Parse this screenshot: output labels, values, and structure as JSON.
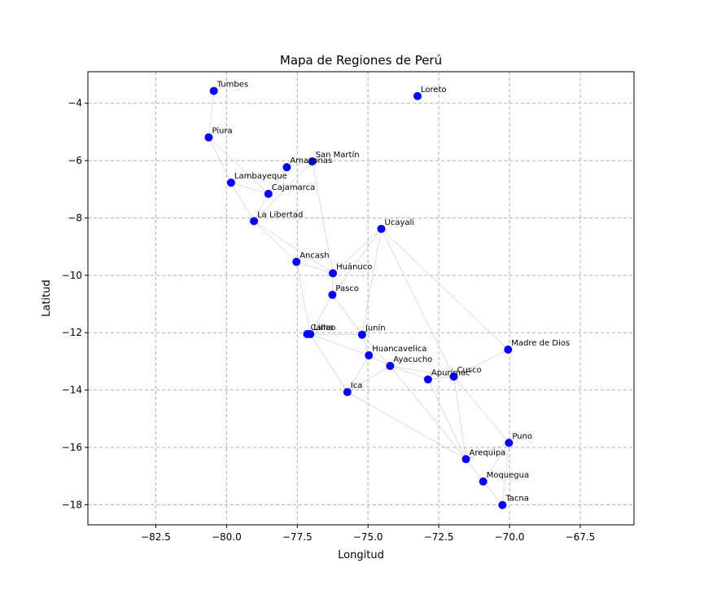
{
  "chart_data": {
    "type": "scatter",
    "title": "Mapa de Regiones de Perú",
    "xlabel": "Longitud",
    "ylabel": "Latitud",
    "xlim": [
      -84.9,
      -65.6
    ],
    "ylim": [
      -18.7,
      -2.9
    ],
    "xticks": [
      -82.5,
      -80.0,
      -77.5,
      -75.0,
      -72.5,
      -70.0,
      -67.5
    ],
    "xtick_labels": [
      "−82.5",
      "−80.0",
      "−77.5",
      "−75.0",
      "−72.5",
      "−70.0",
      "−67.5"
    ],
    "yticks": [
      -4,
      -6,
      -8,
      -10,
      -12,
      -14,
      -16,
      -18
    ],
    "ytick_labels": [
      "−4",
      "−6",
      "−8",
      "−10",
      "−12",
      "−14",
      "−16",
      "−18"
    ],
    "grid": true,
    "marker_color": "#0000ff",
    "edge_color": "#c8c8c8",
    "points": [
      {
        "name": "Tumbes",
        "x": -80.45,
        "y": -3.57
      },
      {
        "name": "Loreto",
        "x": -73.25,
        "y": -3.75
      },
      {
        "name": "Piura",
        "x": -80.63,
        "y": -5.19
      },
      {
        "name": "San Martín",
        "x": -76.97,
        "y": -6.03
      },
      {
        "name": "Amazonas",
        "x": -77.87,
        "y": -6.23
      },
      {
        "name": "Lambayeque",
        "x": -79.84,
        "y": -6.77
      },
      {
        "name": "Cajamarca",
        "x": -78.52,
        "y": -7.16
      },
      {
        "name": "La Libertad",
        "x": -79.03,
        "y": -8.11
      },
      {
        "name": "Ucayali",
        "x": -74.53,
        "y": -8.38
      },
      {
        "name": "Ancash",
        "x": -77.53,
        "y": -9.53
      },
      {
        "name": "Huánuco",
        "x": -76.24,
        "y": -9.93
      },
      {
        "name": "Pasco",
        "x": -76.26,
        "y": -10.68
      },
      {
        "name": "Lima",
        "x": -77.04,
        "y": -12.05
      },
      {
        "name": "Callao",
        "x": -77.15,
        "y": -12.05
      },
      {
        "name": "Junín",
        "x": -75.21,
        "y": -12.07
      },
      {
        "name": "Madre de Dios",
        "x": -70.05,
        "y": -12.59
      },
      {
        "name": "Huancavelica",
        "x": -74.97,
        "y": -12.79
      },
      {
        "name": "Ayacucho",
        "x": -74.22,
        "y": -13.16
      },
      {
        "name": "Cusco",
        "x": -71.97,
        "y": -13.53
      },
      {
        "name": "Apurímac",
        "x": -72.88,
        "y": -13.63
      },
      {
        "name": "Ica",
        "x": -75.73,
        "y": -14.07
      },
      {
        "name": "Puno",
        "x": -70.02,
        "y": -15.84
      },
      {
        "name": "Arequipa",
        "x": -71.54,
        "y": -16.41
      },
      {
        "name": "Moquegua",
        "x": -70.93,
        "y": -17.19
      },
      {
        "name": "Tacna",
        "x": -70.25,
        "y": -18.01
      }
    ],
    "edges": [
      [
        "Tumbes",
        "Piura"
      ],
      [
        "Piura",
        "Lambayeque"
      ],
      [
        "Piura",
        "Cajamarca"
      ],
      [
        "Cajamarca",
        "Amazonas"
      ],
      [
        "Cajamarca",
        "Lambayeque"
      ],
      [
        "Cajamarca",
        "La Libertad"
      ],
      [
        "Amazonas",
        "San Martín"
      ],
      [
        "Lambayeque",
        "La Libertad"
      ],
      [
        "San Martín",
        "La Libertad"
      ],
      [
        "San Martín",
        "Huánuco"
      ],
      [
        "La Libertad",
        "Ancash"
      ],
      [
        "La Libertad",
        "Huánuco"
      ],
      [
        "Ancash",
        "Huánuco"
      ],
      [
        "Ancash",
        "Lima"
      ],
      [
        "Huánuco",
        "Ucayali"
      ],
      [
        "Huánuco",
        "Pasco"
      ],
      [
        "Ucayali",
        "Pasco"
      ],
      [
        "Ucayali",
        "Junín"
      ],
      [
        "Ucayali",
        "Cusco"
      ],
      [
        "Ucayali",
        "Madre de Dios"
      ],
      [
        "Pasco",
        "Lima"
      ],
      [
        "Pasco",
        "Junín"
      ],
      [
        "Lima",
        "Callao"
      ],
      [
        "Lima",
        "Junín"
      ],
      [
        "Lima",
        "Huancavelica"
      ],
      [
        "Lima",
        "Ica"
      ],
      [
        "Junín",
        "Huancavelica"
      ],
      [
        "Junín",
        "Ayacucho"
      ],
      [
        "Huancavelica",
        "Ayacucho"
      ],
      [
        "Huancavelica",
        "Ica"
      ],
      [
        "Ayacucho",
        "Apurímac"
      ],
      [
        "Ayacucho",
        "Cusco"
      ],
      [
        "Ayacucho",
        "Ica"
      ],
      [
        "Ayacucho",
        "Arequipa"
      ],
      [
        "Apurímac",
        "Cusco"
      ],
      [
        "Apurímac",
        "Arequipa"
      ],
      [
        "Cusco",
        "Madre de Dios"
      ],
      [
        "Cusco",
        "Puno"
      ],
      [
        "Cusco",
        "Arequipa"
      ],
      [
        "Ica",
        "Arequipa"
      ],
      [
        "Arequipa",
        "Puno"
      ],
      [
        "Arequipa",
        "Moquegua"
      ],
      [
        "Puno",
        "Moquegua"
      ],
      [
        "Puno",
        "Tacna"
      ],
      [
        "Moquegua",
        "Tacna"
      ]
    ]
  }
}
